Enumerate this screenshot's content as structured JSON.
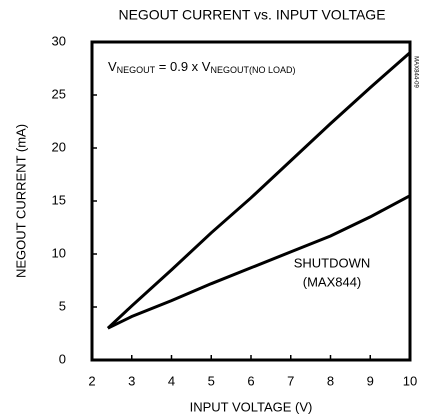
{
  "chart_data": {
    "type": "line",
    "title": "NEGOUT CURRENT vs. INPUT VOLTAGE",
    "x_label": "INPUT VOLTAGE (V)",
    "y_label": "NEGOUT CURRENT (mA)",
    "annotation_formula": [
      "V",
      "NEGOUT",
      " = 0.9 x V",
      "NEGOUT(NO LOAD)"
    ],
    "annotation_series": [
      "SHUTDOWN",
      "(MAX844)"
    ],
    "side_code": "MAX844-09",
    "x": [
      2.4,
      3,
      4,
      5,
      6,
      7,
      8,
      9,
      10
    ],
    "series": [
      {
        "color": "#000000",
        "values": [
          3,
          5.1,
          8.5,
          12,
          15.3,
          18.8,
          22.3,
          25.7,
          29
        ]
      },
      {
        "color": "#000000",
        "values": [
          3,
          4.1,
          5.6,
          7.2,
          8.7,
          10.2,
          11.7,
          13.5,
          15.5
        ]
      }
    ],
    "xlim": [
      2,
      10
    ],
    "xticks": [
      2,
      3,
      4,
      5,
      6,
      7,
      8,
      9,
      10
    ],
    "ylim": [
      0,
      30
    ],
    "yticks": [
      0,
      5,
      10,
      15,
      20,
      25,
      30
    ],
    "grid": false
  }
}
